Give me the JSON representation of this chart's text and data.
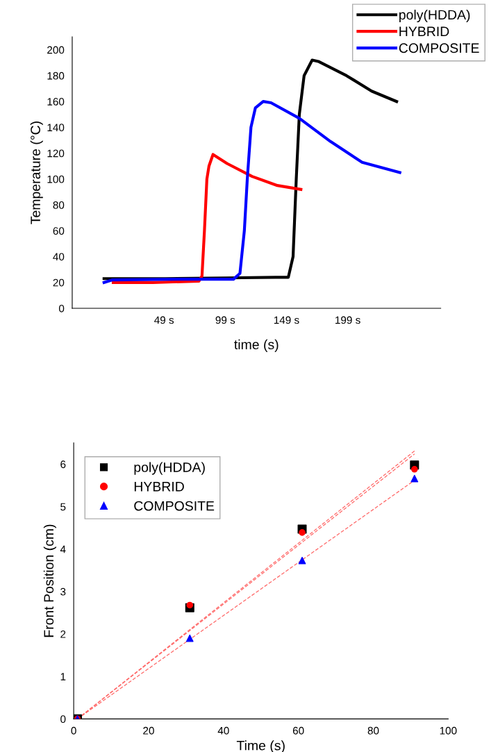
{
  "chart_data": [
    {
      "type": "line",
      "xlabel": "time (s)",
      "ylabel": "Temperature (°C)",
      "xlim": [
        -26,
        275
      ],
      "ylim": [
        0,
        210
      ],
      "xticks": [
        {
          "value": 49,
          "label": "49 s"
        },
        {
          "value": 99,
          "label": "99 s"
        },
        {
          "value": 149,
          "label": "149 s"
        },
        {
          "value": 199,
          "label": "199 s"
        }
      ],
      "yticks": [
        0,
        20,
        40,
        60,
        80,
        100,
        120,
        140,
        160,
        180,
        200
      ],
      "grid": false,
      "legend": "top right",
      "marker": "none",
      "line_style": "solid",
      "series": [
        {
          "name": "poly(HDDA)",
          "color": "#000000",
          "x": [
            0,
            50,
            100,
            140,
            150.5,
            154.4,
            157,
            159.5,
            163.4,
            170,
            175,
            198,
            218.6,
            239
          ],
          "values": [
            23,
            23,
            23.5,
            24,
            24,
            40,
            100,
            150,
            180,
            192,
            191,
            180,
            168,
            160
          ]
        },
        {
          "name": "HYBRID",
          "color": "#ff0000",
          "x": [
            7.5,
            40,
            77.5,
            80,
            82,
            84,
            85.7,
            89,
            100.5,
            121,
            141.6,
            160.8
          ],
          "values": [
            20,
            20,
            21,
            25,
            60,
            100,
            110,
            119,
            112,
            102,
            95,
            92
          ]
        },
        {
          "name": "COMPOSITE",
          "color": "#0000ff",
          "x": [
            0,
            7,
            60,
            105.7,
            111,
            114.6,
            117,
            120,
            123.6,
            130,
            136.4,
            159.5,
            185,
            210.8,
            241.6
          ],
          "values": [
            20,
            22,
            22.5,
            22.5,
            27,
            60,
            100,
            140,
            155,
            160,
            159,
            147,
            129,
            113,
            105
          ]
        }
      ]
    },
    {
      "type": "scatter",
      "xlabel": "Time (s)",
      "ylabel": "Front Position (cm)",
      "xlim": [
        0,
        100
      ],
      "ylim": [
        0,
        6.5
      ],
      "xticks": [
        0,
        20,
        40,
        60,
        80,
        100
      ],
      "yticks": [
        0,
        1,
        2,
        3,
        4,
        5,
        6
      ],
      "grid": false,
      "legend": "top left",
      "series": [
        {
          "name": "poly(HDDA)",
          "color": "#000000",
          "marker": "square",
          "x": [
            1,
            31,
            61,
            91
          ],
          "values": [
            0,
            2.62,
            4.47,
            5.98
          ]
        },
        {
          "name": "HYBRID",
          "color": "#ff0000",
          "marker": "circle",
          "x": [
            1,
            31,
            61,
            91
          ],
          "values": [
            0,
            2.68,
            4.39,
            5.88
          ]
        },
        {
          "name": "COMPOSITE",
          "color": "#0000ff",
          "marker": "triangle",
          "x": [
            1,
            31,
            61,
            91
          ],
          "values": [
            0,
            1.9,
            3.73,
            5.66
          ]
        },
        {
          "type": "line",
          "color": "#ff6666",
          "line_style": "dashed",
          "marker": "none",
          "x": [
            1,
            91
          ],
          "values": [
            0,
            6.31
          ]
        },
        {
          "type": "line",
          "color": "#ff6666",
          "line_style": "dashed",
          "marker": "none",
          "x": [
            1,
            91
          ],
          "values": [
            0,
            6.24
          ]
        },
        {
          "type": "line",
          "color": "#ff6666",
          "line_style": "dashed",
          "marker": "none",
          "x": [
            1,
            91
          ],
          "values": [
            0,
            5.62
          ]
        }
      ]
    }
  ]
}
